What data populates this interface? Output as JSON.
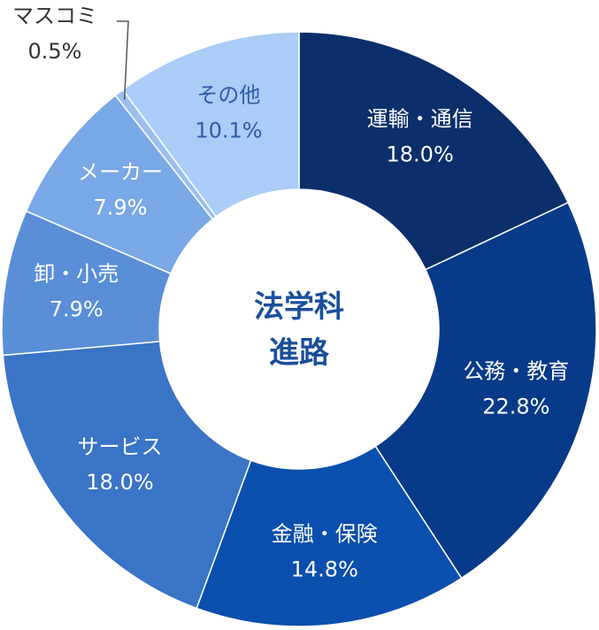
{
  "chart_data": {
    "type": "pie",
    "center_title": [
      "法学科",
      "進路"
    ],
    "slices": [
      {
        "label": "運輸・通信",
        "value": 18.0,
        "pct": "18.0%",
        "color": "#0a2f6b"
      },
      {
        "label": "公務・教育",
        "value": 22.8,
        "pct": "22.8%",
        "color": "#073b89"
      },
      {
        "label": "金融・保険",
        "value": 14.8,
        "pct": "14.8%",
        "color": "#0a4fae"
      },
      {
        "label": "サービス",
        "value": 18.0,
        "pct": "18.0%",
        "color": "#3a74c6"
      },
      {
        "label": "卸・小売",
        "value": 7.9,
        "pct": "7.9%",
        "color": "#5a8fd8"
      },
      {
        "label": "メーカー",
        "value": 7.9,
        "pct": "7.9%",
        "color": "#79a8e6"
      },
      {
        "label": "マスコミ",
        "value": 0.5,
        "pct": "0.5%",
        "color": "#9bc0f0"
      },
      {
        "label": "その他",
        "value": 10.1,
        "pct": "10.1%",
        "color": "#a9cdf7"
      }
    ]
  }
}
